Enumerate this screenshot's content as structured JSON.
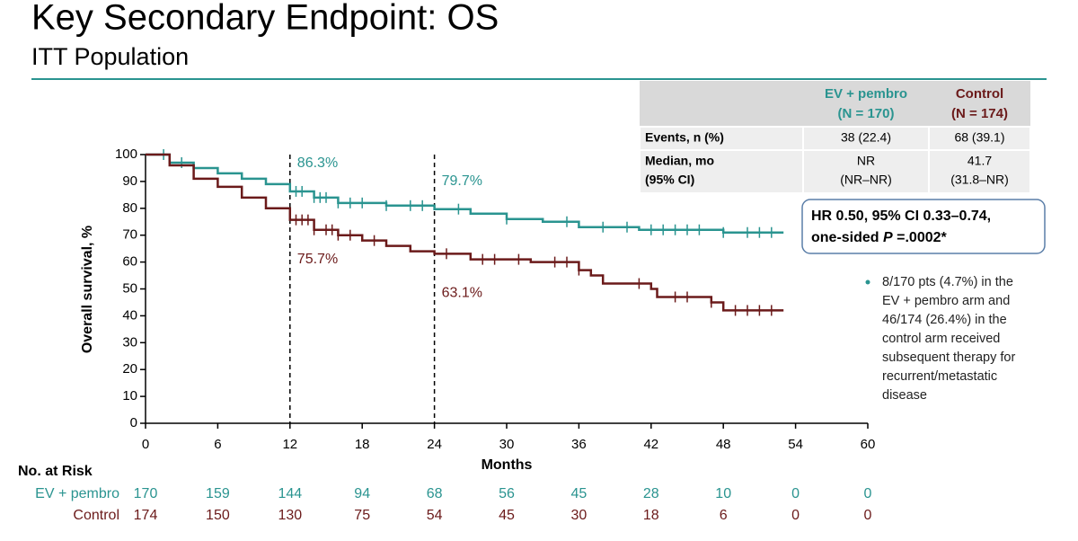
{
  "header": {
    "title": "Key Secondary Endpoint: OS",
    "subtitle": "ITT Population"
  },
  "chart_data": {
    "type": "step",
    "y_label": "Overall survival, %",
    "x_label": "Months",
    "xlim": [
      0,
      60
    ],
    "xticks": [
      0,
      6,
      12,
      18,
      24,
      30,
      36,
      42,
      48,
      54,
      60
    ],
    "ylim": [
      0,
      100
    ],
    "yticks": [
      0,
      10,
      20,
      30,
      40,
      50,
      60,
      70,
      80,
      90,
      100
    ],
    "series": [
      {
        "name": "EV + pembro",
        "color": "#2a9490",
        "x": [
          0,
          2,
          4,
          6,
          8,
          10,
          12,
          14,
          16,
          20,
          24,
          27,
          30,
          33,
          36,
          41,
          48,
          53
        ],
        "values": [
          100,
          97,
          95,
          93,
          91,
          89,
          86.3,
          84,
          82,
          81,
          79.7,
          78,
          76,
          75,
          73,
          72,
          71,
          71
        ],
        "censor": [
          1.5,
          3,
          12.5,
          13,
          14,
          14.5,
          15,
          16,
          17,
          18,
          20,
          22,
          23,
          26,
          30,
          35,
          38,
          40,
          42,
          43,
          44,
          45,
          46,
          48,
          50,
          51,
          52
        ]
      },
      {
        "name": "Control",
        "color": "#6b1a1a",
        "x": [
          0,
          2,
          4,
          6,
          8,
          10,
          12,
          14,
          16,
          18,
          20,
          22,
          24,
          27,
          32,
          36,
          37,
          38,
          42,
          42.5,
          47,
          48,
          53
        ],
        "values": [
          100,
          96,
          91,
          88,
          84,
          80,
          75.7,
          72,
          70,
          68,
          66,
          64,
          63.1,
          61,
          60,
          57,
          55,
          52,
          50,
          47,
          45,
          42,
          42
        ],
        "censor": [
          12.5,
          13,
          13.5,
          14,
          15,
          15.5,
          16,
          17,
          19,
          25,
          28,
          29,
          31,
          34,
          35,
          36,
          41,
          44,
          45,
          47,
          49,
          50,
          51,
          52
        ]
      }
    ],
    "vlines": [
      12,
      24
    ],
    "annotations": [
      {
        "x": 12,
        "value": 86.3,
        "label": "86.3%",
        "series": 0
      },
      {
        "x": 12,
        "value": 75.7,
        "label": "75.7%",
        "series": 1
      },
      {
        "x": 24,
        "value": 79.7,
        "label": "79.7%",
        "series": 0
      },
      {
        "x": 24,
        "value": 63.1,
        "label": "63.1%",
        "series": 1
      }
    ]
  },
  "table": {
    "columns": [
      [
        "EV + pembro",
        "(N = 170)"
      ],
      [
        "Control",
        "(N = 174)"
      ]
    ],
    "rows": [
      {
        "label": [
          "Events, n (%)"
        ],
        "cells": [
          [
            "38 (22.4)"
          ],
          [
            "68 (39.1)"
          ]
        ]
      },
      {
        "label": [
          "Median, mo",
          "(95% CI)"
        ],
        "cells": [
          [
            "NR",
            "(NR–NR)"
          ],
          [
            "41.7",
            "(31.8–NR)"
          ]
        ]
      }
    ]
  },
  "hr_box": {
    "line1": "HR 0.50, 95% CI 0.33–0.74,",
    "line2a": "one-sided ",
    "line2b": "P",
    "line2c": " =.0002*"
  },
  "note": [
    "8/170 pts (4.7%) in the",
    "EV + pembro arm and",
    "46/174 (26.4%) in the",
    "control arm received",
    "subsequent therapy for",
    "recurrent/metastatic",
    "disease"
  ],
  "risk_table": {
    "title": "No. at Risk",
    "rows": [
      {
        "name": "EV + pembro",
        "counts": [
          170,
          159,
          144,
          94,
          68,
          56,
          45,
          28,
          10,
          0,
          0
        ]
      },
      {
        "name": "Control",
        "counts": [
          174,
          150,
          130,
          75,
          54,
          45,
          30,
          18,
          6,
          0,
          0
        ]
      }
    ]
  }
}
